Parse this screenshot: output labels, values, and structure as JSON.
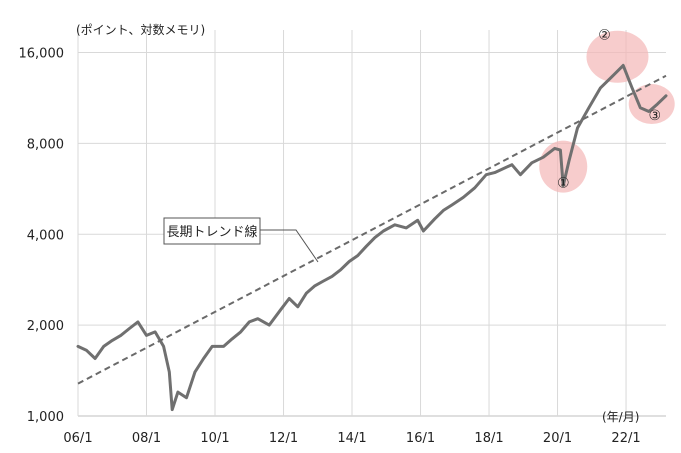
{
  "chart_data": {
    "type": "line",
    "title": "",
    "ylabel": "(ポイント、対数メモリ)",
    "xlabel": "(年/月)",
    "y_scale": "log",
    "ylim": [
      1000,
      19000
    ],
    "xlim": [
      "2006-01",
      "2023-03"
    ],
    "grid": {
      "vertical": true,
      "horizontal": true
    },
    "y_ticks": [
      {
        "value": 1000,
        "label": "1,000"
      },
      {
        "value": 2000,
        "label": "2,000"
      },
      {
        "value": 4000,
        "label": "4,000"
      },
      {
        "value": 8000,
        "label": "8,000"
      },
      {
        "value": 16000,
        "label": "16,000"
      }
    ],
    "x_ticks": [
      {
        "value": "2006-01",
        "label": "06/1"
      },
      {
        "value": "2008-01",
        "label": "08/1"
      },
      {
        "value": "2010-01",
        "label": "10/1"
      },
      {
        "value": "2012-01",
        "label": "12/1"
      },
      {
        "value": "2014-01",
        "label": "14/1"
      },
      {
        "value": "2016-01",
        "label": "16/1"
      },
      {
        "value": "2018-01",
        "label": "18/1"
      },
      {
        "value": "2020-01",
        "label": "20/1"
      },
      {
        "value": "2022-01",
        "label": "22/1"
      }
    ],
    "series": [
      {
        "name": "",
        "color": "#707070",
        "style": "solid",
        "x": [
          "2006-01",
          "2006-04",
          "2006-07",
          "2006-10",
          "2007-01",
          "2007-04",
          "2007-07",
          "2007-10",
          "2008-01",
          "2008-04",
          "2008-07",
          "2008-09",
          "2008-10",
          "2008-12",
          "2009-03",
          "2009-06",
          "2009-09",
          "2009-12",
          "2010-04",
          "2010-07",
          "2010-10",
          "2011-01",
          "2011-04",
          "2011-08",
          "2011-12",
          "2012-03",
          "2012-06",
          "2012-09",
          "2012-12",
          "2013-03",
          "2013-06",
          "2013-09",
          "2013-12",
          "2014-03",
          "2014-06",
          "2014-09",
          "2014-12",
          "2015-04",
          "2015-08",
          "2015-12",
          "2016-02",
          "2016-06",
          "2016-09",
          "2016-12",
          "2017-04",
          "2017-08",
          "2017-12",
          "2018-03",
          "2018-09",
          "2018-12",
          "2019-04",
          "2019-08",
          "2019-12",
          "2020-02",
          "2020-03",
          "2020-05",
          "2020-08",
          "2020-12",
          "2021-04",
          "2021-08",
          "2021-12",
          "2022-03",
          "2022-06",
          "2022-09",
          "2022-12",
          "2023-03"
        ],
        "values": [
          1700,
          1650,
          1550,
          1700,
          1780,
          1850,
          1950,
          2050,
          1850,
          1900,
          1700,
          1400,
          1050,
          1200,
          1150,
          1400,
          1550,
          1700,
          1700,
          1800,
          1900,
          2050,
          2100,
          2000,
          2250,
          2450,
          2300,
          2550,
          2700,
          2800,
          2900,
          3050,
          3250,
          3400,
          3650,
          3900,
          4100,
          4300,
          4200,
          4450,
          4100,
          4500,
          4800,
          5000,
          5300,
          5700,
          6300,
          6400,
          6800,
          6300,
          6900,
          7200,
          7700,
          7600,
          5800,
          7000,
          9000,
          10500,
          12200,
          13300,
          14500,
          12300,
          10500,
          10200,
          10800,
          11500
        ]
      },
      {
        "name": "長期トレンド線",
        "color": "#6a6a6a",
        "style": "dashed",
        "x": [
          "2006-01",
          "2023-03"
        ],
        "values": [
          1280,
          13400
        ]
      }
    ],
    "annotations": [
      {
        "type": "callout",
        "text": "長期トレンド線",
        "x": "2013-01",
        "y": 4200
      },
      {
        "type": "circle",
        "text": "①",
        "x": "2020-03",
        "y": 6700
      },
      {
        "type": "circle",
        "text": "②",
        "x": "2021-10",
        "y": 15500
      },
      {
        "type": "circle",
        "text": "③",
        "x": "2022-10",
        "y": 10800
      }
    ]
  }
}
